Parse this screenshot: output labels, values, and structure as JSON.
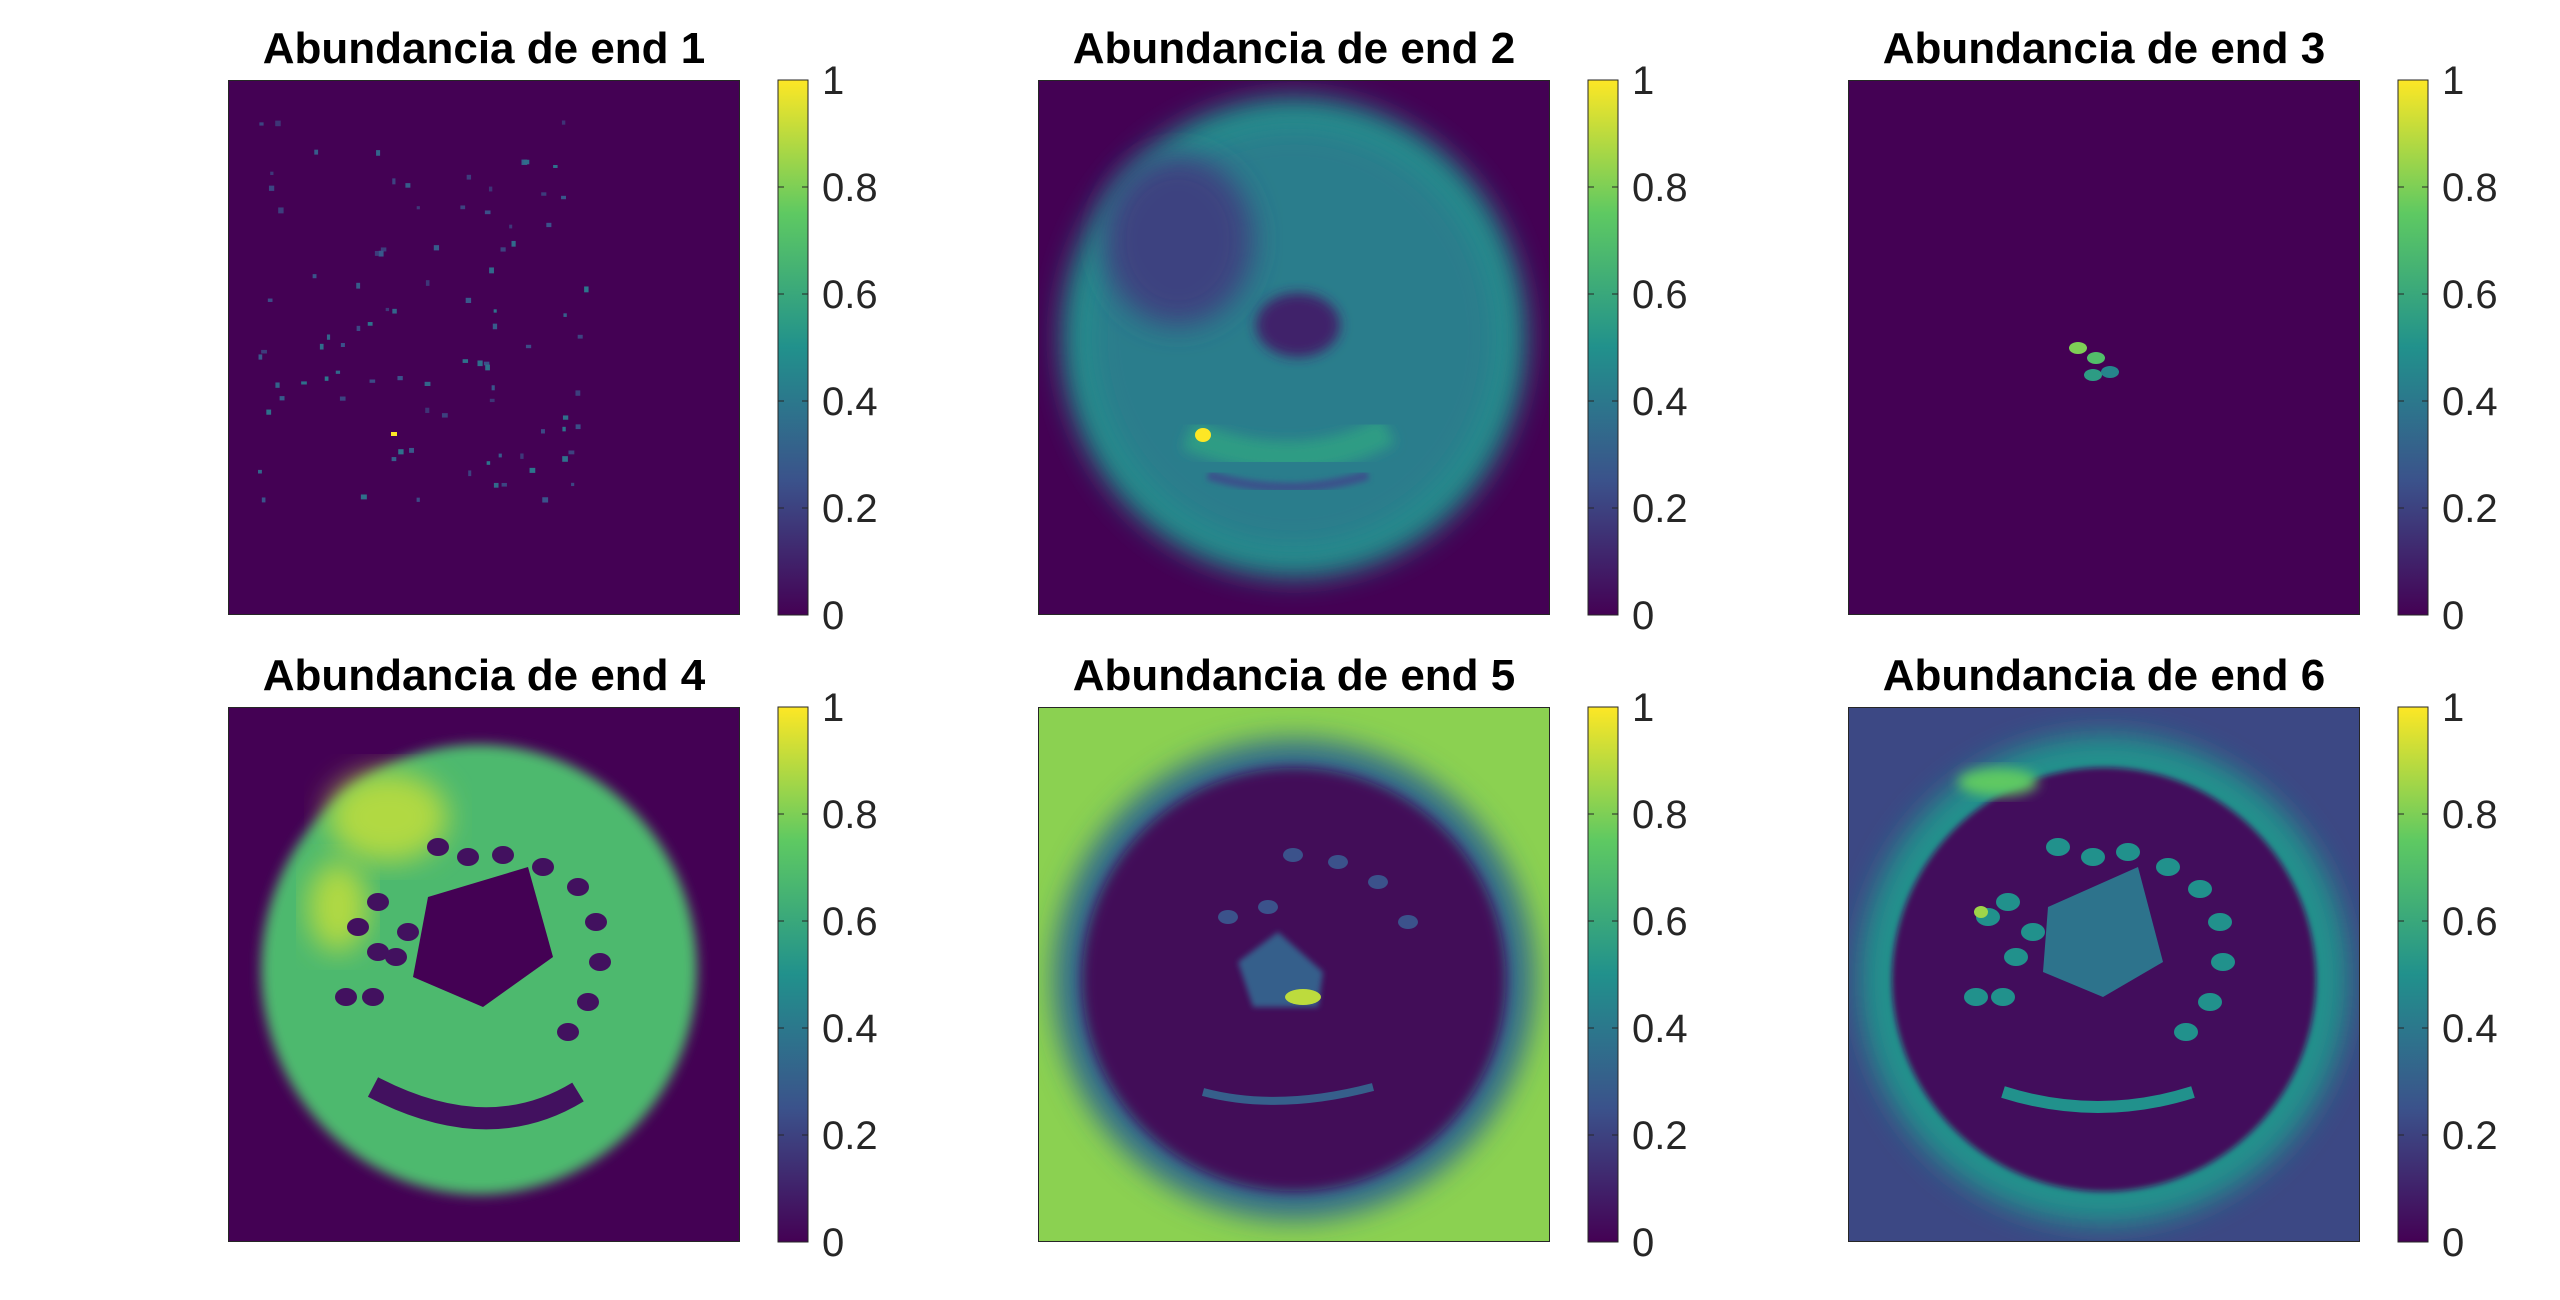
{
  "colormap": {
    "name": "parula",
    "stops": [
      "#3e26a8",
      "#4743f8",
      "#2d8bf2",
      "#15b5b1",
      "#7fc84d",
      "#f7ba3c",
      "#f9fb0e"
    ],
    "background": "#440154",
    "viridis_stops": [
      "#440154",
      "#3b528b",
      "#21918c",
      "#5ec962",
      "#fde725"
    ]
  },
  "chart_data": [
    {
      "type": "heatmap",
      "title": "Abundancia de end 1",
      "colorbar": {
        "range": [
          0,
          1
        ],
        "ticks": [
          "0",
          "0.2",
          "0.4",
          "0.6",
          "0.8",
          "1"
        ]
      },
      "description_values": {
        "background_level": 0.0,
        "max_level": 1.0
      }
    },
    {
      "type": "heatmap",
      "title": "Abundancia de end 2",
      "colorbar": {
        "range": [
          0,
          1
        ],
        "ticks": [
          "0",
          "0.2",
          "0.4",
          "0.6",
          "0.8",
          "1"
        ]
      },
      "description_values": {
        "background_level": 0.0,
        "disc_level": 0.42,
        "rim_level": 0.5,
        "max_level": 1.0
      }
    },
    {
      "type": "heatmap",
      "title": "Abundancia de end 3",
      "colorbar": {
        "range": [
          0,
          1
        ],
        "ticks": [
          "0",
          "0.2",
          "0.4",
          "0.6",
          "0.8",
          "1"
        ]
      },
      "description_values": {
        "background_level": 0.0,
        "center_spots_level": 0.75
      }
    },
    {
      "type": "heatmap",
      "title": "Abundancia de end 4",
      "colorbar": {
        "range": [
          0,
          1
        ],
        "ticks": [
          "0",
          "0.2",
          "0.4",
          "0.6",
          "0.8",
          "1"
        ]
      },
      "description_values": {
        "background_level": 0.0,
        "ring_level": 0.68,
        "bright_patch_level": 0.88
      }
    },
    {
      "type": "heatmap",
      "title": "Abundancia de end 5",
      "colorbar": {
        "range": [
          0,
          1
        ],
        "ticks": [
          "0",
          "0.2",
          "0.4",
          "0.6",
          "0.8",
          "1"
        ]
      },
      "description_values": {
        "background_level": 0.82,
        "inner_level": 0.02
      }
    },
    {
      "type": "heatmap",
      "title": "Abundancia de end 6",
      "colorbar": {
        "range": [
          0,
          1
        ],
        "ticks": [
          "0",
          "0.2",
          "0.4",
          "0.6",
          "0.8",
          "1"
        ]
      },
      "description_values": {
        "background_level": 0.22,
        "halo_level": 0.5,
        "inner_level": 0.03,
        "spots_level": 0.5
      }
    }
  ]
}
